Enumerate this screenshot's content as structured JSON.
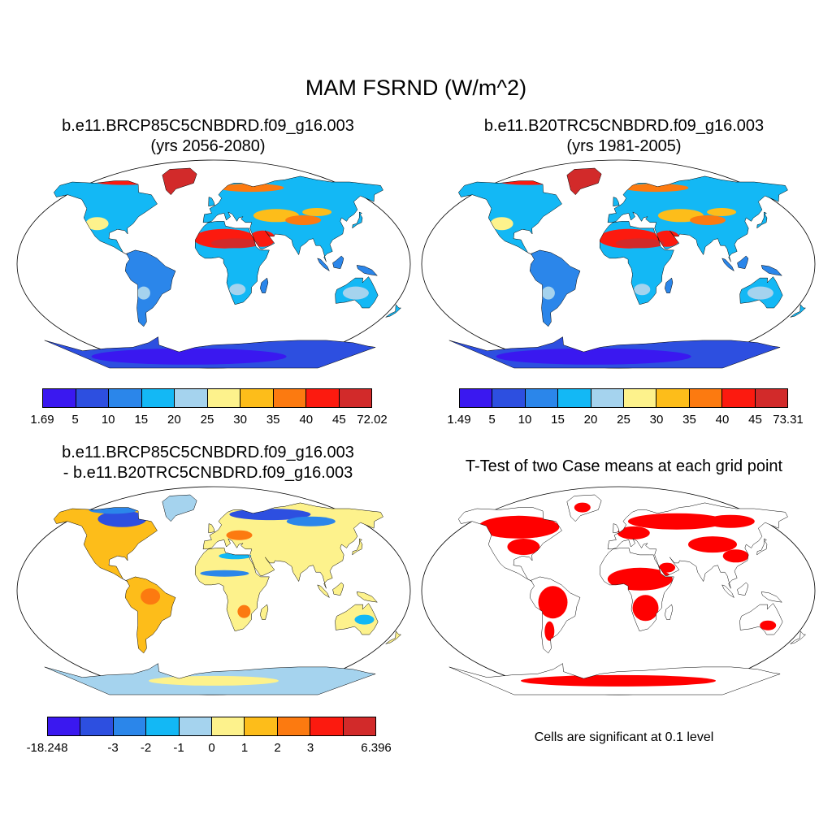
{
  "title": "MAM FSRND (W/m^2)",
  "colors": {
    "palette": [
      "#3a18f0",
      "#2d4fe0",
      "#2b86ea",
      "#13b8f5",
      "#a5d3ee",
      "#fdf28c",
      "#fdbd1a",
      "#fc7a10",
      "#fc1a0f",
      "#d22a2a"
    ],
    "significant": "#ff0000",
    "outline": "#000000"
  },
  "panels": [
    {
      "title_line1": "b.e11.BRCP85C5CNBDRD.f09_g16.003",
      "title_line2": "(yrs 2056-2080)",
      "colorbar": {
        "ticks": [
          "1.69",
          "5",
          "10",
          "15",
          "20",
          "25",
          "30",
          "35",
          "40",
          "45",
          "72.02"
        ],
        "tick_values": [
          1.69,
          5,
          10,
          15,
          20,
          25,
          30,
          35,
          40,
          45,
          72.02
        ]
      }
    },
    {
      "title_line1": "b.e11.B20TRC5CNBDRD.f09_g16.003",
      "title_line2": "(yrs 1981-2005)",
      "colorbar": {
        "ticks": [
          "1.49",
          "5",
          "10",
          "15",
          "20",
          "25",
          "30",
          "35",
          "40",
          "45",
          "73.31"
        ],
        "tick_values": [
          1.49,
          5,
          10,
          15,
          20,
          25,
          30,
          35,
          40,
          45,
          73.31
        ]
      }
    },
    {
      "title_line1": "b.e11.BRCP85C5CNBDRD.f09_g16.003",
      "title_line2": "- b.e11.B20TRC5CNBDRD.f09_g16.003",
      "colorbar": {
        "ticks": [
          "-18.248",
          "-3",
          "-2",
          "-1",
          "0",
          "1",
          "2",
          "3",
          "6.396"
        ],
        "tick_values": [
          -18.248,
          -3,
          -2,
          -1,
          0,
          1,
          2,
          3,
          6.396
        ],
        "tick_slots": [
          0,
          2,
          3,
          4,
          5,
          6,
          7,
          8,
          10
        ]
      }
    },
    {
      "title_line1": "T-Test of two Case means at each grid point",
      "note": "Cells are significant at 0.1 level"
    }
  ]
}
